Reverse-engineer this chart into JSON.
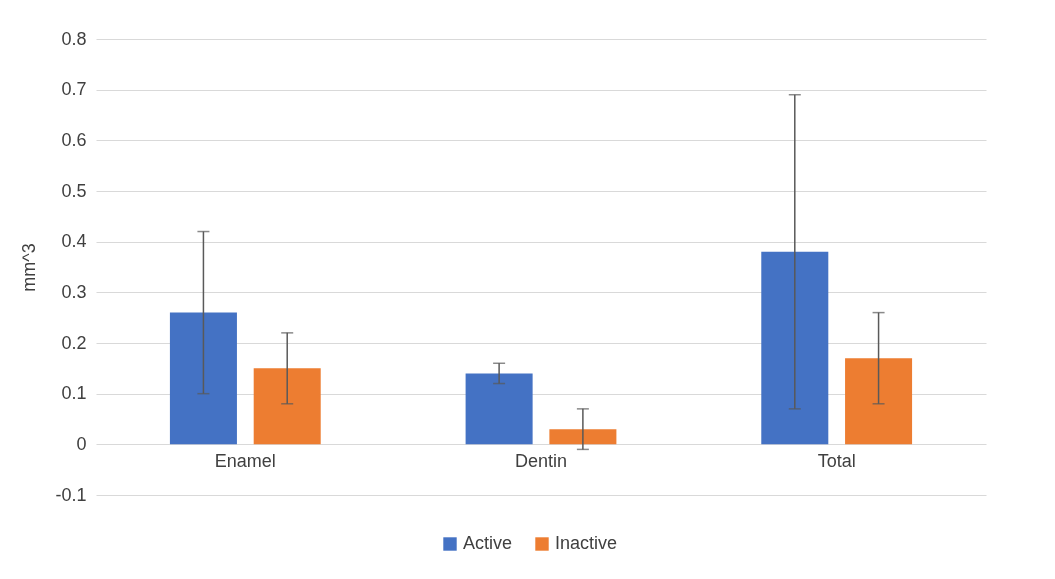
{
  "chart_data": {
    "type": "bar",
    "ylabel": "mm^3",
    "categories": [
      "Enamel",
      "Dentin",
      "Total"
    ],
    "series": [
      {
        "name": "Active",
        "color": "#4472c4",
        "values": [
          0.26,
          0.14,
          0.38
        ],
        "errors": [
          0.16,
          0.02,
          0.31
        ]
      },
      {
        "name": "Inactive",
        "color": "#ed7d31",
        "values": [
          0.15,
          0.03,
          0.17
        ],
        "errors": [
          0.07,
          0.04,
          0.09
        ]
      }
    ],
    "ylim": [
      -0.1,
      0.8
    ],
    "yticks": [
      -0.1,
      0,
      0.1,
      0.2,
      0.3,
      0.4,
      0.5,
      0.6,
      0.7,
      0.8
    ],
    "grid": "y",
    "legend": "bottom"
  }
}
